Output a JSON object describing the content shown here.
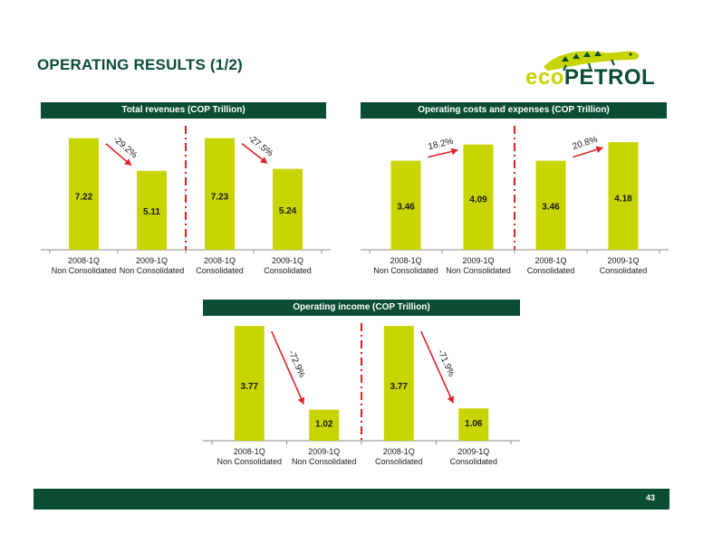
{
  "page": {
    "title": "OPERATING RESULTS (1/2)",
    "page_number": "43"
  },
  "logo": {
    "text_eco": "eco",
    "text_petrol": "PETROL"
  },
  "colors": {
    "dark_green": "#0b4d33",
    "bar": "#c8d400",
    "arrow": "#e31f26",
    "divider": "#e31f26"
  },
  "chart_data": [
    {
      "type": "bar",
      "title": "Total revenues  (COP Trillion)",
      "categories": [
        [
          "2008-1Q",
          "Non Consolidated"
        ],
        [
          "2009-1Q",
          "Non Consolidated"
        ],
        [
          "2008-1Q",
          "Consolidated"
        ],
        [
          "2009-1Q",
          "Consolidated"
        ]
      ],
      "values": [
        7.22,
        5.11,
        7.23,
        5.24
      ],
      "value_labels": [
        "7.22",
        "5.11",
        "7.23",
        "5.24"
      ],
      "changes": [
        {
          "from": 0,
          "to": 1,
          "label": "-29.2%"
        },
        {
          "from": 2,
          "to": 3,
          "label": "-27.5%"
        }
      ],
      "ylim": [
        0,
        8.5
      ]
    },
    {
      "type": "bar",
      "title": "Operating costs and expenses (COP Trillion)",
      "categories": [
        [
          "2008-1Q",
          "Non Consolidated"
        ],
        [
          "2009-1Q",
          "Non Consolidated"
        ],
        [
          "2008-1Q",
          "Consolidated"
        ],
        [
          "2009-1Q",
          "Consolidated"
        ]
      ],
      "values": [
        3.46,
        4.09,
        3.46,
        4.18
      ],
      "value_labels": [
        "3.46",
        "4.09",
        "3.46",
        "4.18"
      ],
      "changes": [
        {
          "from": 0,
          "to": 1,
          "label": "18.2%"
        },
        {
          "from": 2,
          "to": 3,
          "label": "20.8%"
        }
      ],
      "ylim": [
        0,
        5.1
      ]
    },
    {
      "type": "bar",
      "title": "Operating income (COP Trillion)",
      "categories": [
        [
          "2008-1Q",
          "Non Consolidated"
        ],
        [
          "2009-1Q",
          "Non Consolidated"
        ],
        [
          "2008-1Q",
          "Consolidated"
        ],
        [
          "2009-1Q",
          "Consolidated"
        ]
      ],
      "values": [
        3.77,
        1.02,
        3.77,
        1.06
      ],
      "value_labels": [
        "3.77",
        "1.02",
        "3.77",
        "1.06"
      ],
      "changes": [
        {
          "from": 0,
          "to": 1,
          "label": "-72.9%"
        },
        {
          "from": 2,
          "to": 3,
          "label": "-71.9%"
        }
      ],
      "ylim": [
        0,
        4.1
      ]
    }
  ]
}
